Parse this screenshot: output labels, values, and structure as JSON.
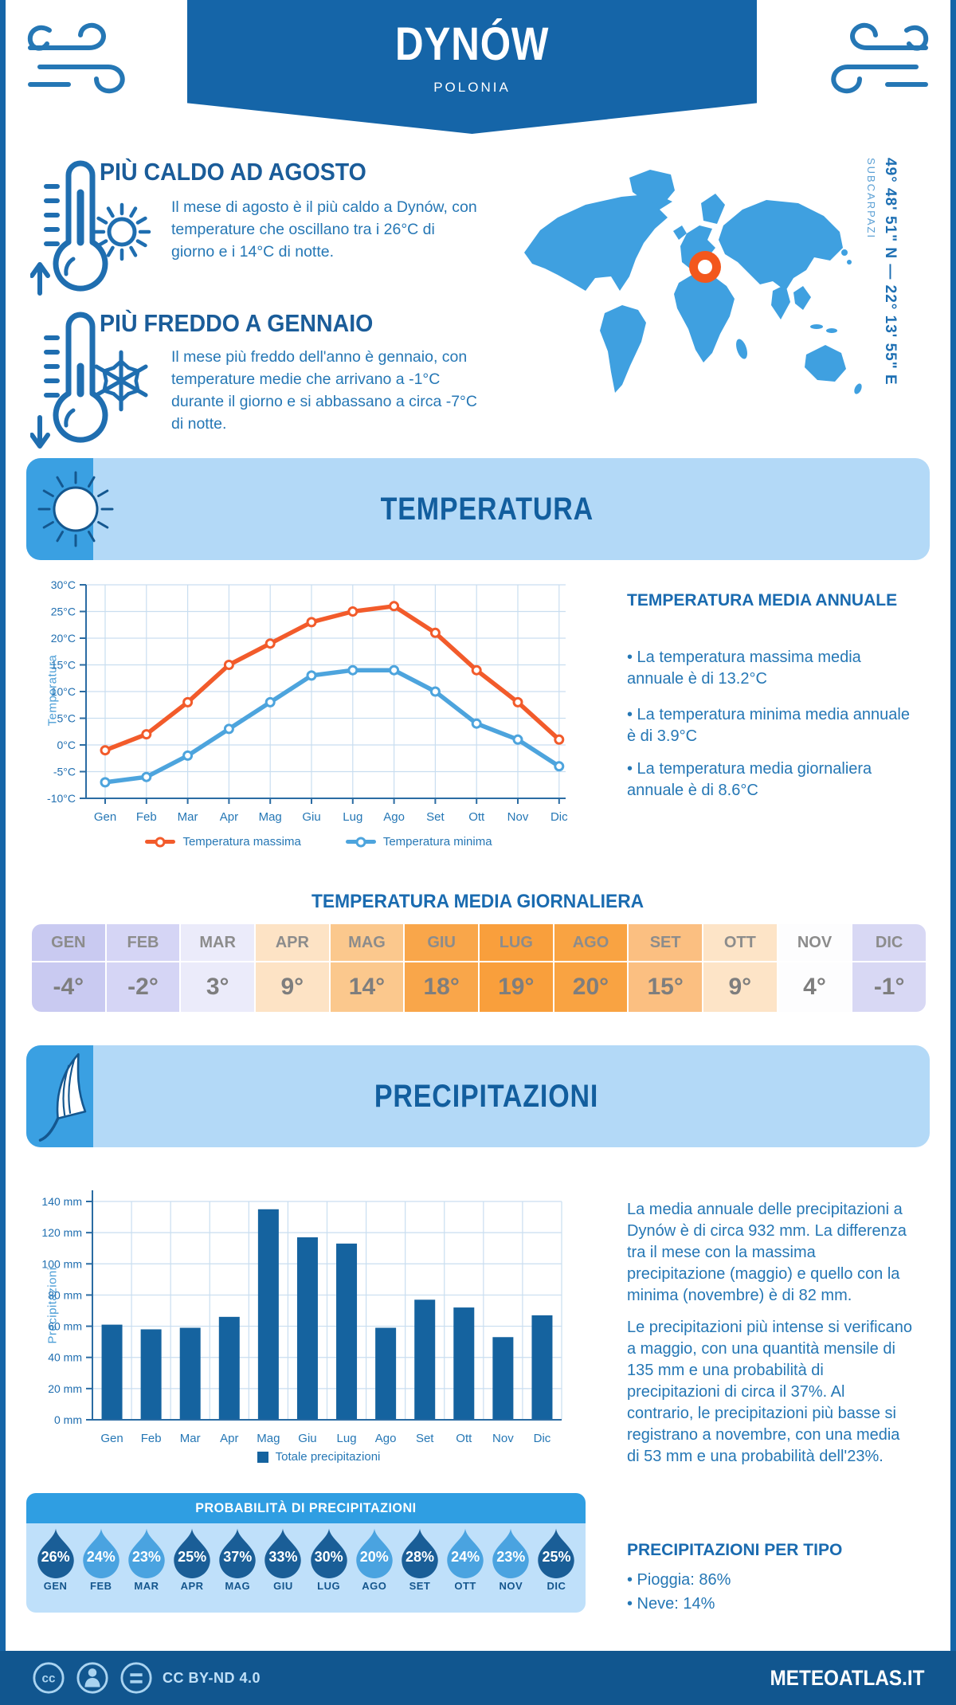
{
  "header": {
    "title": "DYNÓW",
    "subtitle": "POLONIA"
  },
  "location": {
    "coordinates": "49° 48' 51\" N — 22° 13' 55\" E",
    "region": "SUBCARPAZI",
    "marker_color": "#f3571c",
    "map_color": "#3fa0e0"
  },
  "highlights": [
    {
      "title": "PIÙ CALDO AD AGOSTO",
      "icons": [
        "thermometer-up",
        "sun"
      ],
      "text": "Il mese di agosto è il più caldo a Dynów, con\ntemperature che oscillano tra i 26°C di\ngiorno e i 14°C di notte."
    },
    {
      "title": "PIÙ FREDDO A GENNAIO",
      "icons": [
        "thermometer-down",
        "snowflake"
      ],
      "text": "Il mese più freddo dell'anno è gennaio, con\ntemperature medie che arrivano a -1°C\ndurante il giorno e si abbassano a circa -7°C\ndi notte."
    }
  ],
  "temperature": {
    "banner": "TEMPERATURA",
    "annual_title": "TEMPERATURA MEDIA ANNUALE",
    "annual_bullets": [
      "• La temperatura massima media\nannuale è di 13.2°C",
      "• La temperatura minima media annuale\nè di 3.9°C",
      "• La temperatura media giornaliera\nannuale è di 8.6°C"
    ],
    "daily_title": "TEMPERATURA MEDIA GIORNALIERA",
    "daily_table": {
      "months": [
        "GEN",
        "FEB",
        "MAR",
        "APR",
        "MAG",
        "GIU",
        "LUG",
        "AGO",
        "SET",
        "OTT",
        "NOV",
        "DIC"
      ],
      "values": [
        "-4°",
        "-2°",
        "3°",
        "9°",
        "14°",
        "18°",
        "19°",
        "20°",
        "15°",
        "9°",
        "4°",
        "-1°"
      ],
      "cell_colors": [
        "#c9caf1",
        "#d5d5f5",
        "#ebebfa",
        "#fde3c5",
        "#fbc88d",
        "#f9a64a",
        "#f99f3c",
        "#f9a342",
        "#fbbf81",
        "#fde4c7",
        "#fdfdfe",
        "#d8d8f4"
      ]
    }
  },
  "precipitation": {
    "banner": "PRECIPITAZIONI",
    "paragraphs": [
      "La media annuale delle precipitazioni a\nDynów è di circa 932 mm. La differenza\ntra il mese con la massima\nprecipitazione (maggio) e quello con la\nminima (novembre) è di 82 mm.",
      "Le precipitazioni più intense si verificano\na maggio, con una quantità mensile di\n135 mm e una probabilità di\nprecipitazioni di circa il 37%. Al\ncontrario, le precipitazioni più basse si\nregistrano a novembre, con una media\ndi 53 mm e una probabilità dell'23%."
    ],
    "probability": {
      "title": "PROBABILITÀ DI PRECIPITAZIONI",
      "months": [
        "GEN",
        "FEB",
        "MAR",
        "APR",
        "MAG",
        "GIU",
        "LUG",
        "AGO",
        "SET",
        "OTT",
        "NOV",
        "DIC"
      ],
      "values": [
        "26%",
        "24%",
        "23%",
        "25%",
        "37%",
        "33%",
        "30%",
        "20%",
        "28%",
        "24%",
        "23%",
        "25%"
      ],
      "dark_flags": [
        true,
        false,
        false,
        true,
        true,
        true,
        true,
        false,
        true,
        false,
        false,
        true
      ],
      "drop_dark": "#1a5e97",
      "drop_light": "#4aa3e0"
    },
    "by_type": {
      "title": "PRECIPITAZIONI PER TIPO",
      "items": [
        "• Pioggia: 86%",
        "• Neve: 14%"
      ]
    }
  },
  "chart_data": [
    {
      "type": "line",
      "x": [
        "Gen",
        "Feb",
        "Mar",
        "Apr",
        "Mag",
        "Giu",
        "Lug",
        "Ago",
        "Set",
        "Ott",
        "Nov",
        "Dic"
      ],
      "series": [
        {
          "name": "Temperatura massima",
          "color": "#f25b2b",
          "values": [
            -1,
            2,
            8,
            15,
            19,
            23,
            25,
            26,
            21,
            14,
            8,
            1
          ]
        },
        {
          "name": "Temperatura minima",
          "color": "#4da4dd",
          "values": [
            -7,
            -6,
            -2,
            3,
            8,
            13,
            14,
            14,
            10,
            4,
            1,
            -4
          ]
        }
      ],
      "ylabel": "Temperatura",
      "ylim": [
        -10,
        30
      ],
      "ytick_step": 5,
      "ytick_suffix": "°C",
      "grid": true,
      "legend_position": "bottom"
    },
    {
      "type": "bar",
      "categories": [
        "Gen",
        "Feb",
        "Mar",
        "Apr",
        "Mag",
        "Giu",
        "Lug",
        "Ago",
        "Set",
        "Ott",
        "Nov",
        "Dic"
      ],
      "series": [
        {
          "name": "Totale precipitazioni",
          "color": "#15639f",
          "values": [
            61,
            58,
            59,
            66,
            135,
            117,
            113,
            59,
            77,
            72,
            53,
            67
          ]
        }
      ],
      "ylabel": "Precipitazioni",
      "ylim": [
        0,
        140
      ],
      "ytick_step": 20,
      "ytick_suffix": " mm",
      "grid": true,
      "legend_position": "bottom"
    }
  ],
  "footer": {
    "license": "CC BY-ND 4.0",
    "site": "METEOATLAS.IT"
  }
}
